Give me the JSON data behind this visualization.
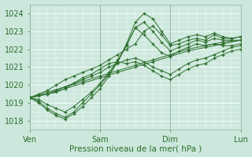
{
  "title": "",
  "xlabel": "Pression niveau de la mer( hPa )",
  "ylabel": "",
  "bg_color": "#cce8dc",
  "grid_color": "#ffffff",
  "line_color": "#2d6e2d",
  "marker_color": "#2d6e2d",
  "ylim": [
    1017.5,
    1024.5
  ],
  "yticks": [
    1018,
    1019,
    1020,
    1021,
    1022,
    1023,
    1024
  ],
  "day_labels": [
    "Ven",
    "Sam",
    "Dim",
    "Lun"
  ],
  "day_positions": [
    0,
    48,
    96,
    144
  ],
  "total_hours": 144,
  "series": [
    {
      "x": [
        0,
        12,
        24,
        36,
        48,
        60,
        72,
        84,
        96,
        108,
        120,
        132,
        144
      ],
      "y": [
        1019.3,
        1019.5,
        1019.8,
        1020.1,
        1020.4,
        1020.7,
        1021.0,
        1021.3,
        1021.6,
        1021.9,
        1022.1,
        1022.3,
        1022.5
      ]
    },
    {
      "x": [
        0,
        12,
        24,
        36,
        48,
        60,
        72,
        84,
        96,
        108,
        120,
        132,
        144
      ],
      "y": [
        1019.3,
        1019.6,
        1019.9,
        1020.2,
        1020.5,
        1020.8,
        1021.1,
        1021.4,
        1021.7,
        1022.0,
        1022.2,
        1022.4,
        1022.5
      ]
    },
    {
      "x": [
        0,
        6,
        12,
        18,
        24,
        30,
        36,
        42,
        48,
        54,
        60,
        66,
        72,
        78,
        84,
        90,
        96,
        102,
        108,
        114,
        120,
        126,
        132,
        138,
        144
      ],
      "y": [
        1019.3,
        1019.1,
        1018.7,
        1018.4,
        1018.2,
        1018.5,
        1019.0,
        1019.5,
        1020.0,
        1020.6,
        1021.3,
        1022.2,
        1023.2,
        1023.5,
        1023.0,
        1022.4,
        1021.9,
        1022.1,
        1022.3,
        1022.5,
        1022.4,
        1022.6,
        1022.5,
        1022.5,
        1022.5
      ]
    },
    {
      "x": [
        0,
        6,
        12,
        18,
        24,
        30,
        36,
        42,
        48,
        54,
        60,
        66,
        72,
        78,
        84,
        90,
        96,
        102,
        108,
        114,
        120,
        126,
        132,
        138,
        144
      ],
      "y": [
        1019.3,
        1019.0,
        1018.6,
        1018.3,
        1018.1,
        1018.4,
        1018.8,
        1019.3,
        1019.8,
        1020.5,
        1021.3,
        1022.3,
        1023.5,
        1024.0,
        1023.7,
        1023.0,
        1022.3,
        1022.5,
        1022.7,
        1022.8,
        1022.7,
        1022.9,
        1022.7,
        1022.6,
        1022.7
      ]
    },
    {
      "x": [
        0,
        6,
        12,
        18,
        24,
        30,
        36,
        42,
        48,
        54,
        60,
        66,
        72,
        78,
        84,
        90,
        96,
        102,
        108,
        114,
        120,
        126,
        132,
        138,
        144
      ],
      "y": [
        1019.3,
        1019.2,
        1018.9,
        1018.7,
        1018.5,
        1018.8,
        1019.2,
        1019.6,
        1020.1,
        1020.7,
        1021.4,
        1022.2,
        1023.2,
        1022.8,
        1022.3,
        1021.8,
        1021.6,
        1021.9,
        1022.1,
        1022.3,
        1022.2,
        1022.3,
        1022.2,
        1022.2,
        1022.3
      ]
    },
    {
      "x": [
        0,
        6,
        12,
        18,
        24,
        30,
        36,
        42,
        48,
        54,
        60,
        66,
        72,
        78,
        84,
        90,
        96,
        102,
        108,
        114,
        120,
        126,
        132,
        138,
        144
      ],
      "y": [
        1019.3,
        1019.4,
        1019.5,
        1019.6,
        1019.8,
        1020.1,
        1020.4,
        1020.6,
        1020.9,
        1021.2,
        1021.3,
        1021.2,
        1021.3,
        1021.1,
        1020.8,
        1020.5,
        1020.3,
        1020.6,
        1020.9,
        1021.1,
        1021.2,
        1021.5,
        1021.7,
        1021.9,
        1022.0
      ]
    },
    {
      "x": [
        0,
        6,
        12,
        18,
        24,
        30,
        36,
        42,
        48,
        54,
        60,
        66,
        72,
        78,
        84,
        90,
        96,
        102,
        108,
        114,
        120,
        126,
        132,
        138,
        144
      ],
      "y": [
        1019.3,
        1019.4,
        1019.5,
        1019.7,
        1019.9,
        1020.1,
        1020.3,
        1020.5,
        1020.7,
        1021.0,
        1021.2,
        1021.4,
        1021.5,
        1021.3,
        1021.0,
        1020.8,
        1020.6,
        1020.9,
        1021.2,
        1021.4,
        1021.5,
        1021.7,
        1021.9,
        1022.1,
        1022.2
      ]
    },
    {
      "x": [
        0,
        6,
        12,
        18,
        24,
        30,
        36,
        42,
        48,
        54,
        60,
        66,
        72,
        78,
        84,
        90,
        96,
        102,
        108,
        114,
        120,
        126,
        132,
        138,
        144
      ],
      "y": [
        1019.3,
        1019.5,
        1019.7,
        1020.0,
        1020.3,
        1020.5,
        1020.7,
        1020.9,
        1021.1,
        1021.4,
        1021.7,
        1022.0,
        1022.3,
        1023.0,
        1023.3,
        1022.8,
        1022.2,
        1022.3,
        1022.5,
        1022.6,
        1022.5,
        1022.8,
        1022.6,
        1022.6,
        1022.7
      ]
    }
  ]
}
